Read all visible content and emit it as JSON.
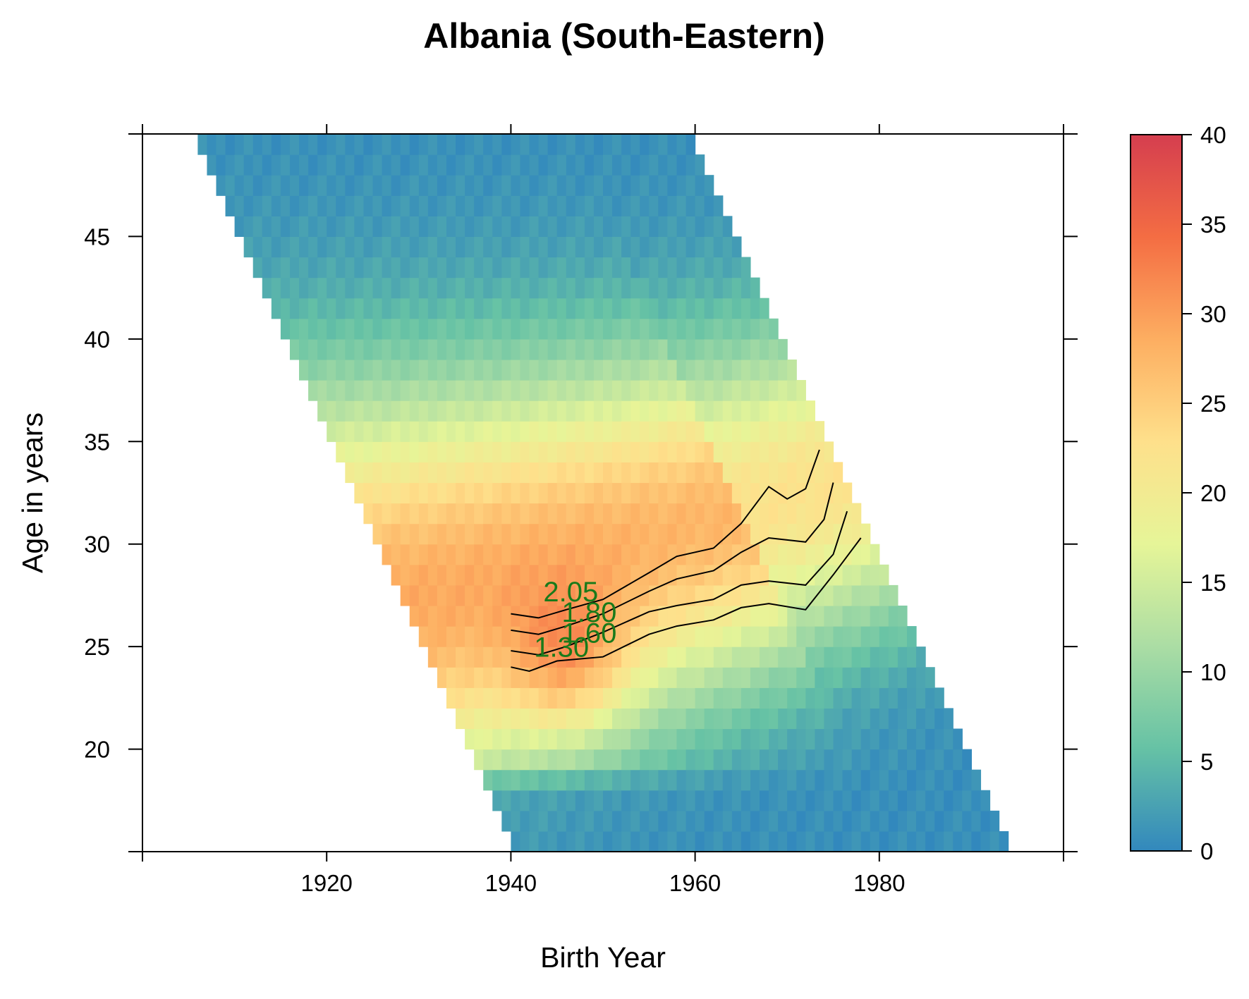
{
  "chart_data": {
    "type": "heatmap",
    "title": "Albania (South-Eastern)",
    "xlabel": "Birth Year",
    "ylabel": "Age in years",
    "xlim": [
      1900,
      2000
    ],
    "ylim": [
      15,
      50
    ],
    "x_ticks": [
      "1920",
      "1940",
      "1960",
      "1980"
    ],
    "x_tick_values": [
      1920,
      1940,
      1960,
      1980
    ],
    "y_ticks": [
      "20",
      "25",
      "30",
      "35",
      "40",
      "45"
    ],
    "y_tick_values": [
      20,
      25,
      30,
      35,
      40,
      45
    ],
    "observation_period": [
      1955,
      2008
    ],
    "cohort_range": [
      1905,
      1993
    ],
    "age_range": [
      15,
      50
    ],
    "colorbar": {
      "min": 0,
      "max": 40,
      "ticks": [
        "0",
        "5",
        "10",
        "15",
        "20",
        "25",
        "30",
        "35",
        "40"
      ],
      "tick_values": [
        0,
        5,
        10,
        15,
        20,
        25,
        30,
        35,
        40
      ],
      "palette": [
        "#3288bd",
        "#66c2a5",
        "#abdda4",
        "#e6f598",
        "#fee08b",
        "#fdae61",
        "#f46d43",
        "#d53e4f"
      ]
    },
    "contours": [
      {
        "label": "2.05",
        "label_position": [
          1946.5,
          27.2
        ],
        "points": [
          [
            1940,
            26.6
          ],
          [
            1943,
            26.4
          ],
          [
            1946,
            26.8
          ],
          [
            1950,
            27.3
          ],
          [
            1955,
            28.6
          ],
          [
            1958,
            29.4
          ],
          [
            1962,
            29.8
          ],
          [
            1965,
            31.0
          ],
          [
            1968,
            32.8
          ],
          [
            1970,
            32.2
          ],
          [
            1972,
            32.7
          ],
          [
            1973.5,
            34.6
          ]
        ]
      },
      {
        "label": "1.80",
        "label_position": [
          1948.5,
          26.2
        ],
        "points": [
          [
            1940,
            25.8
          ],
          [
            1943,
            25.6
          ],
          [
            1946,
            26.0
          ],
          [
            1950,
            26.6
          ],
          [
            1955,
            27.7
          ],
          [
            1958,
            28.3
          ],
          [
            1962,
            28.7
          ],
          [
            1965,
            29.6
          ],
          [
            1968,
            30.3
          ],
          [
            1972,
            30.1
          ],
          [
            1974,
            31.2
          ],
          [
            1975,
            33.0
          ]
        ]
      },
      {
        "label": "1.60",
        "label_position": [
          1948.5,
          25.2
        ],
        "points": [
          [
            1940,
            24.8
          ],
          [
            1943,
            24.6
          ],
          [
            1946,
            25.0
          ],
          [
            1950,
            25.7
          ],
          [
            1955,
            26.7
          ],
          [
            1958,
            27.0
          ],
          [
            1962,
            27.3
          ],
          [
            1965,
            28.0
          ],
          [
            1968,
            28.2
          ],
          [
            1972,
            28.0
          ],
          [
            1975,
            29.5
          ],
          [
            1976.5,
            31.6
          ]
        ]
      },
      {
        "label": "1.30",
        "label_position": [
          1945.5,
          24.5
        ],
        "points": [
          [
            1940,
            24.0
          ],
          [
            1942,
            23.8
          ],
          [
            1945,
            24.3
          ],
          [
            1950,
            24.5
          ],
          [
            1955,
            25.6
          ],
          [
            1958,
            26.0
          ],
          [
            1962,
            26.3
          ],
          [
            1965,
            26.9
          ],
          [
            1968,
            27.1
          ],
          [
            1972,
            26.8
          ],
          [
            1975,
            28.5
          ],
          [
            1978,
            30.3
          ]
        ]
      }
    ]
  }
}
